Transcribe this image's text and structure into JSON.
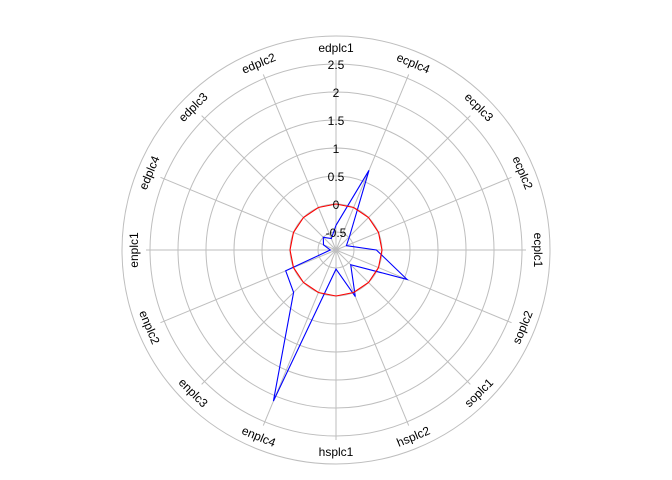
{
  "chart_data": {
    "type": "radar",
    "axes": [
      "edplc1",
      "ecplc4",
      "ecplc3",
      "ecplc2",
      "ecplc1",
      "soplc2",
      "soplc1",
      "hsplc2",
      "hsplc1",
      "enplc4",
      "enplc3",
      "enplc2",
      "enplc1",
      "edplc4",
      "edplc3",
      "edplc2"
    ],
    "radial_ticks": [
      "-0.5",
      "0",
      "0.5",
      "1",
      "1.5",
      "2",
      "2.5"
    ],
    "radial_range": [
      -0.5,
      2.5
    ],
    "grid": true,
    "legend": "none",
    "series": [
      {
        "color": "#0000ff",
        "values": [
          -0.38,
          0.72,
          -0.48,
          -0.62,
          -0.1,
          0.55,
          -0.45,
          0.08,
          -0.48,
          2.1,
          0.25,
          0.15,
          -0.72,
          -0.58,
          -0.5,
          -0.6
        ]
      },
      {
        "color": "#ff0000",
        "values": [
          0,
          0,
          0,
          0,
          0,
          0,
          0,
          0,
          0,
          0,
          0,
          0,
          0,
          0,
          0,
          0
        ]
      }
    ],
    "grid_color": "#bebebe"
  }
}
